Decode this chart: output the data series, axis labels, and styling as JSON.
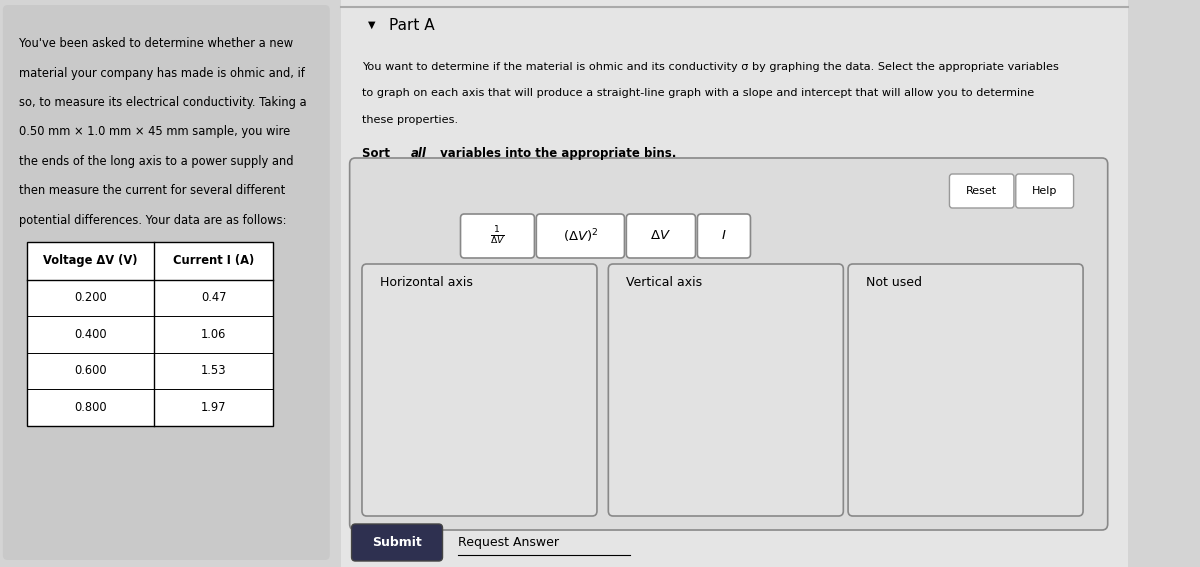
{
  "bg_color": "#d4d4d4",
  "left_panel_bg": "#c8c8c8",
  "right_panel_bg": "#e5e5e5",
  "left_text_lines": [
    "You've been asked to determine whether a new",
    "material your company has made is ohmic and, if",
    "so, to measure its electrical conductivity. Taking a",
    "0.50 mm × 1.0 mm × 45 mm sample, you wire",
    "the ends of the long axis to a power supply and",
    "then measure the current for several different",
    "potential differences. Your data are as follows:"
  ],
  "table_headers": [
    "Voltage ΔV (V)",
    "Current I (A)"
  ],
  "table_data": [
    [
      "0.200",
      "0.47"
    ],
    [
      "0.400",
      "1.06"
    ],
    [
      "0.600",
      "1.53"
    ],
    [
      "0.800",
      "1.97"
    ]
  ],
  "part_a_label": "Part A",
  "description_lines": [
    "You want to determine if the material is ohmic and its conductivity σ by graphing the data. Select the appropriate variables",
    "to graph on each axis that will produce a straight-line graph with a slope and intercept that will allow you to determine",
    "these properties."
  ],
  "sort_label_pre": "Sort ",
  "sort_label_italic": "all",
  "sort_label_post": " variables into the appropriate bins.",
  "bin_labels": [
    "Horizontal axis",
    "Vertical axis",
    "Not used"
  ],
  "submit_label": "Submit",
  "request_label": "Request Answer"
}
